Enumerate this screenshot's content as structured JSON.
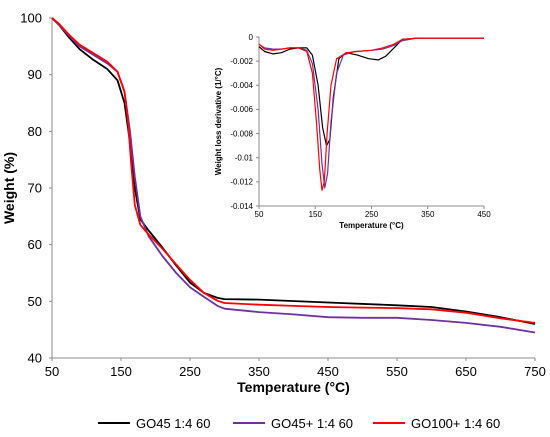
{
  "chart_data": [
    {
      "type": "line",
      "title": "",
      "xlabel": "Temperature (°C)",
      "ylabel": "Weight (%)",
      "xlim": [
        50,
        750
      ],
      "ylim": [
        40,
        100
      ],
      "x_ticks": [
        "50",
        "150",
        "250",
        "350",
        "450",
        "550",
        "650",
        "750"
      ],
      "y_ticks": [
        "40",
        "50",
        "60",
        "70",
        "80",
        "90",
        "100"
      ],
      "grid": false,
      "legend_position": "bottom",
      "series": [
        {
          "name": "GO45 1:4 60",
          "color": "#000000",
          "points": [
            [
              50,
              100
            ],
            [
              60,
              98.8
            ],
            [
              75,
              96.5
            ],
            [
              90,
              94.5
            ],
            [
              110,
              92.6
            ],
            [
              130,
              91
            ],
            [
              145,
              89
            ],
            [
              155,
              85
            ],
            [
              163,
              78
            ],
            [
              170,
              70
            ],
            [
              178,
              64.5
            ],
            [
              190,
              62.5
            ],
            [
              210,
              59.5
            ],
            [
              230,
              56.3
            ],
            [
              250,
              53.3
            ],
            [
              270,
              51.5
            ],
            [
              290,
              50.6
            ],
            [
              300,
              50.4
            ],
            [
              350,
              50.3
            ],
            [
              450,
              49.8
            ],
            [
              550,
              49.3
            ],
            [
              600,
              49
            ],
            [
              650,
              48.2
            ],
            [
              700,
              47.2
            ],
            [
              750,
              46
            ]
          ]
        },
        {
          "name": "GO45+ 1:4 60",
          "color": "#7030a0",
          "points": [
            [
              50,
              100
            ],
            [
              60,
              98.8
            ],
            [
              75,
              96.8
            ],
            [
              90,
              95
            ],
            [
              110,
              93.5
            ],
            [
              130,
              92
            ],
            [
              145,
              90.5
            ],
            [
              155,
              87
            ],
            [
              163,
              80
            ],
            [
              170,
              72
            ],
            [
              178,
              65
            ],
            [
              190,
              61.5
            ],
            [
              210,
              58
            ],
            [
              230,
              55
            ],
            [
              250,
              52.5
            ],
            [
              270,
              50.8
            ],
            [
              290,
              49.2
            ],
            [
              300,
              48.7
            ],
            [
              350,
              48.1
            ],
            [
              400,
              47.7
            ],
            [
              450,
              47.2
            ],
            [
              500,
              47.1
            ],
            [
              550,
              47.1
            ],
            [
              600,
              46.7
            ],
            [
              650,
              46.2
            ],
            [
              700,
              45.5
            ],
            [
              750,
              44.5
            ]
          ]
        },
        {
          "name": "GO100+ 1:4 60",
          "color": "#ff0000",
          "points": [
            [
              50,
              100
            ],
            [
              60,
              99
            ],
            [
              75,
              97
            ],
            [
              90,
              95.3
            ],
            [
              110,
              93.8
            ],
            [
              130,
              92.3
            ],
            [
              145,
              90.5
            ],
            [
              155,
              87
            ],
            [
              160,
              82
            ],
            [
              165,
              74
            ],
            [
              170,
              67
            ],
            [
              178,
              63.5
            ],
            [
              190,
              61.8
            ],
            [
              210,
              59.3
            ],
            [
              230,
              56.5
            ],
            [
              250,
              53.8
            ],
            [
              270,
              51.5
            ],
            [
              290,
              50.1
            ],
            [
              300,
              49.7
            ],
            [
              350,
              49.4
            ],
            [
              400,
              49.2
            ],
            [
              450,
              49
            ],
            [
              500,
              48.9
            ],
            [
              550,
              48.8
            ],
            [
              600,
              48.6
            ],
            [
              650,
              48
            ],
            [
              700,
              47
            ],
            [
              750,
              46.2
            ]
          ]
        }
      ]
    },
    {
      "type": "line",
      "title": "",
      "xlabel": "Temperature (°C)",
      "ylabel": "Weight loss derivative (1/°C)",
      "xlim": [
        50,
        450
      ],
      "ylim": [
        -0.014,
        0
      ],
      "x_ticks": [
        "50",
        "150",
        "250",
        "350",
        "450"
      ],
      "y_ticks": [
        "0",
        "-0.002",
        "-0.004",
        "-0.006",
        "-0.008",
        "-0.01",
        "-0.012",
        "-0.014"
      ],
      "grid": false,
      "series": [
        {
          "name": "GO45 1:4 60",
          "color": "#000000",
          "points": [
            [
              50,
              -0.0008
            ],
            [
              60,
              -0.0012
            ],
            [
              75,
              -0.0014
            ],
            [
              90,
              -0.0013
            ],
            [
              105,
              -0.001
            ],
            [
              120,
              -0.0009
            ],
            [
              135,
              -0.0009
            ],
            [
              145,
              -0.0015
            ],
            [
              155,
              -0.004
            ],
            [
              163,
              -0.0075
            ],
            [
              170,
              -0.009
            ],
            [
              176,
              -0.0085
            ],
            [
              182,
              -0.005
            ],
            [
              192,
              -0.0018
            ],
            [
              205,
              -0.0013
            ],
            [
              225,
              -0.0015
            ],
            [
              245,
              -0.0018
            ],
            [
              262,
              -0.0019
            ],
            [
              275,
              -0.0016
            ],
            [
              290,
              -0.0009
            ],
            [
              305,
              -0.0002
            ],
            [
              330,
              -0.0001
            ],
            [
              450,
              -0.0001
            ]
          ]
        },
        {
          "name": "GO45+ 1:4 60",
          "color": "#7030a0",
          "points": [
            [
              50,
              -0.0006
            ],
            [
              60,
              -0.0009
            ],
            [
              75,
              -0.001
            ],
            [
              90,
              -0.001
            ],
            [
              105,
              -0.0009
            ],
            [
              120,
              -0.0009
            ],
            [
              135,
              -0.0011
            ],
            [
              145,
              -0.0022
            ],
            [
              155,
              -0.006
            ],
            [
              162,
              -0.0105
            ],
            [
              167,
              -0.0125
            ],
            [
              172,
              -0.0113
            ],
            [
              178,
              -0.007
            ],
            [
              188,
              -0.003
            ],
            [
              200,
              -0.0015
            ],
            [
              220,
              -0.0012
            ],
            [
              250,
              -0.0011
            ],
            [
              270,
              -0.001
            ],
            [
              290,
              -0.0007
            ],
            [
              305,
              -0.0003
            ],
            [
              330,
              -0.0001
            ],
            [
              450,
              -0.0001
            ]
          ]
        },
        {
          "name": "GO100+ 1:4 60",
          "color": "#ff0000",
          "points": [
            [
              50,
              -0.0006
            ],
            [
              60,
              -0.001
            ],
            [
              75,
              -0.0011
            ],
            [
              90,
              -0.001
            ],
            [
              105,
              -0.0009
            ],
            [
              120,
              -0.0009
            ],
            [
              135,
              -0.0012
            ],
            [
              145,
              -0.003
            ],
            [
              152,
              -0.007
            ],
            [
              158,
              -0.011
            ],
            [
              162,
              -0.0127
            ],
            [
              166,
              -0.012
            ],
            [
              171,
              -0.008
            ],
            [
              178,
              -0.004
            ],
            [
              188,
              -0.0018
            ],
            [
              205,
              -0.0013
            ],
            [
              225,
              -0.0012
            ],
            [
              250,
              -0.0011
            ],
            [
              270,
              -0.0009
            ],
            [
              290,
              -0.0006
            ],
            [
              305,
              -0.0002
            ],
            [
              330,
              -0.0001
            ],
            [
              450,
              -0.0001
            ]
          ]
        }
      ]
    }
  ]
}
